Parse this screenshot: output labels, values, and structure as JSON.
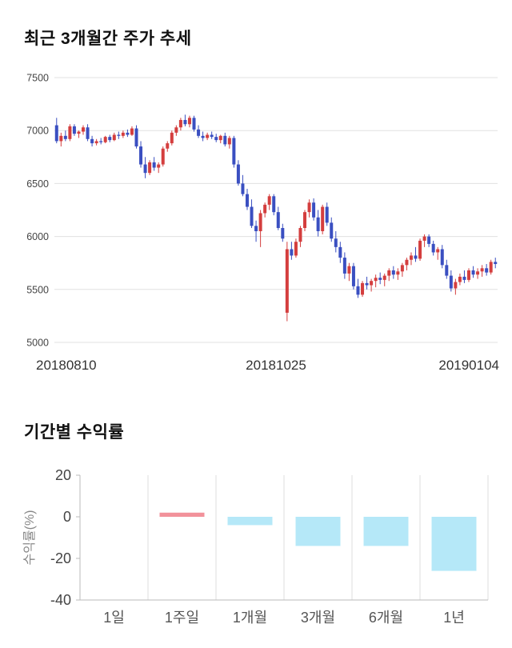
{
  "chart_data": [
    {
      "type": "candlestick",
      "title": "최근 3개월간 주가 추세",
      "ylabel": "",
      "xlabel": "",
      "ylim": [
        5000,
        7500
      ],
      "yticks": [
        5000,
        5500,
        6000,
        6500,
        7000,
        7500
      ],
      "xtick_labels": [
        "20180810",
        "20181025",
        "20190104"
      ],
      "grid": "horizontal",
      "up_color": "#d43e3e",
      "down_color": "#3a4fc1",
      "grid_color": "#e0e0e0",
      "tick_label_color": "#444444",
      "date_label_color": "#333333",
      "candles_format": "open,high,low,close",
      "candles": [
        [
          7050,
          7120,
          6880,
          6900
        ],
        [
          6900,
          6980,
          6850,
          6950
        ],
        [
          6950,
          7000,
          6900,
          6920
        ],
        [
          6920,
          7060,
          6900,
          7040
        ],
        [
          7040,
          7060,
          6950,
          6970
        ],
        [
          6970,
          7000,
          6930,
          6990
        ],
        [
          6990,
          7050,
          6960,
          7030
        ],
        [
          7030,
          7060,
          6900,
          6920
        ],
        [
          6920,
          6950,
          6850,
          6880
        ],
        [
          6880,
          6920,
          6860,
          6900
        ],
        [
          6900,
          6930,
          6870,
          6890
        ],
        [
          6890,
          6950,
          6880,
          6940
        ],
        [
          6940,
          6960,
          6890,
          6910
        ],
        [
          6910,
          6980,
          6900,
          6960
        ],
        [
          6960,
          6990,
          6920,
          6950
        ],
        [
          6950,
          7000,
          6930,
          6980
        ],
        [
          6980,
          7010,
          6940,
          6960
        ],
        [
          6960,
          7040,
          6950,
          7020
        ],
        [
          7020,
          7050,
          6830,
          6850
        ],
        [
          6850,
          6900,
          6650,
          6680
        ],
        [
          6680,
          6750,
          6550,
          6600
        ],
        [
          6600,
          6720,
          6580,
          6700
        ],
        [
          6700,
          6750,
          6620,
          6650
        ],
        [
          6650,
          6700,
          6600,
          6680
        ],
        [
          6680,
          6850,
          6660,
          6830
        ],
        [
          6830,
          6900,
          6800,
          6880
        ],
        [
          6880,
          7000,
          6860,
          6980
        ],
        [
          6980,
          7050,
          6950,
          7030
        ],
        [
          7030,
          7120,
          7000,
          7100
        ],
        [
          7100,
          7150,
          7040,
          7060
        ],
        [
          7060,
          7140,
          7030,
          7120
        ],
        [
          7120,
          7140,
          6990,
          7010
        ],
        [
          7010,
          7050,
          6930,
          6950
        ],
        [
          6950,
          6990,
          6900,
          6930
        ],
        [
          6930,
          6980,
          6910,
          6960
        ],
        [
          6960,
          6990,
          6920,
          6940
        ],
        [
          6940,
          6970,
          6890,
          6910
        ],
        [
          6910,
          6960,
          6880,
          6950
        ],
        [
          6950,
          6980,
          6850,
          6870
        ],
        [
          6870,
          6950,
          6830,
          6930
        ],
        [
          6930,
          6950,
          6650,
          6680
        ],
        [
          6680,
          6720,
          6480,
          6500
        ],
        [
          6500,
          6580,
          6380,
          6400
        ],
        [
          6400,
          6450,
          6250,
          6280
        ],
        [
          6280,
          6350,
          6080,
          6100
        ],
        [
          6100,
          6150,
          5950,
          6050
        ],
        [
          6050,
          6250,
          5900,
          6220
        ],
        [
          6220,
          6320,
          6180,
          6300
        ],
        [
          6300,
          6400,
          6250,
          6380
        ],
        [
          6380,
          6400,
          6200,
          6230
        ],
        [
          6230,
          6280,
          6060,
          6080
        ],
        [
          6080,
          6120,
          5950,
          5980
        ],
        [
          5280,
          5950,
          5200,
          5880
        ],
        [
          5880,
          5950,
          5780,
          5820
        ],
        [
          5820,
          5980,
          5800,
          5950
        ],
        [
          5950,
          6100,
          5900,
          6080
        ],
        [
          6080,
          6250,
          6050,
          6230
        ],
        [
          6230,
          6350,
          6180,
          6320
        ],
        [
          6320,
          6360,
          6150,
          6180
        ],
        [
          6180,
          6250,
          6000,
          6050
        ],
        [
          6050,
          6300,
          6020,
          6280
        ],
        [
          6280,
          6320,
          6100,
          6130
        ],
        [
          6130,
          6180,
          5950,
          5980
        ],
        [
          5980,
          6050,
          5850,
          5900
        ],
        [
          5900,
          5950,
          5750,
          5800
        ],
        [
          5800,
          5850,
          5600,
          5650
        ],
        [
          5650,
          5750,
          5580,
          5720
        ],
        [
          5720,
          5750,
          5500,
          5530
        ],
        [
          5530,
          5600,
          5420,
          5450
        ],
        [
          5450,
          5580,
          5430,
          5560
        ],
        [
          5560,
          5620,
          5500,
          5540
        ],
        [
          5540,
          5600,
          5480,
          5580
        ],
        [
          5580,
          5640,
          5520,
          5610
        ],
        [
          5610,
          5660,
          5550,
          5590
        ],
        [
          5590,
          5650,
          5530,
          5630
        ],
        [
          5630,
          5700,
          5580,
          5680
        ],
        [
          5680,
          5720,
          5600,
          5640
        ],
        [
          5640,
          5700,
          5590,
          5670
        ],
        [
          5670,
          5750,
          5620,
          5730
        ],
        [
          5730,
          5800,
          5680,
          5780
        ],
        [
          5780,
          5850,
          5730,
          5820
        ],
        [
          5820,
          5900,
          5760,
          5790
        ],
        [
          5790,
          5980,
          5770,
          5960
        ],
        [
          5960,
          6020,
          5900,
          6000
        ],
        [
          6000,
          6020,
          5900,
          5930
        ],
        [
          5930,
          5960,
          5820,
          5850
        ],
        [
          5850,
          5900,
          5780,
          5880
        ],
        [
          5880,
          5920,
          5700,
          5730
        ],
        [
          5730,
          5780,
          5600,
          5630
        ],
        [
          5630,
          5680,
          5480,
          5510
        ],
        [
          5510,
          5600,
          5450,
          5570
        ],
        [
          5570,
          5650,
          5540,
          5620
        ],
        [
          5620,
          5680,
          5560,
          5590
        ],
        [
          5590,
          5700,
          5570,
          5680
        ],
        [
          5680,
          5720,
          5610,
          5640
        ],
        [
          5640,
          5700,
          5600,
          5670
        ],
        [
          5670,
          5730,
          5620,
          5700
        ],
        [
          5700,
          5740,
          5630,
          5660
        ],
        [
          5660,
          5780,
          5640,
          5760
        ],
        [
          5760,
          5800,
          5700,
          5740
        ]
      ]
    },
    {
      "type": "bar",
      "title": "기간별 수익률",
      "ylabel": "수익률(%)",
      "xlabel": "",
      "categories": [
        "1일",
        "1주일",
        "1개월",
        "3개월",
        "6개월",
        "1년"
      ],
      "values": [
        0,
        2,
        -4,
        -14,
        -14,
        -26
      ],
      "ylim": [
        -40,
        20
      ],
      "yticks": [
        20,
        0,
        -20,
        -40
      ],
      "grid": "vertical",
      "positive_color": "#f2929b",
      "negative_color": "#b5e8f8",
      "grid_color": "#dddddd",
      "axis_color": "#bbbbbb",
      "tick_label_color": "#444444",
      "category_label_color": "#555555",
      "ylabel_color": "#888888"
    }
  ]
}
